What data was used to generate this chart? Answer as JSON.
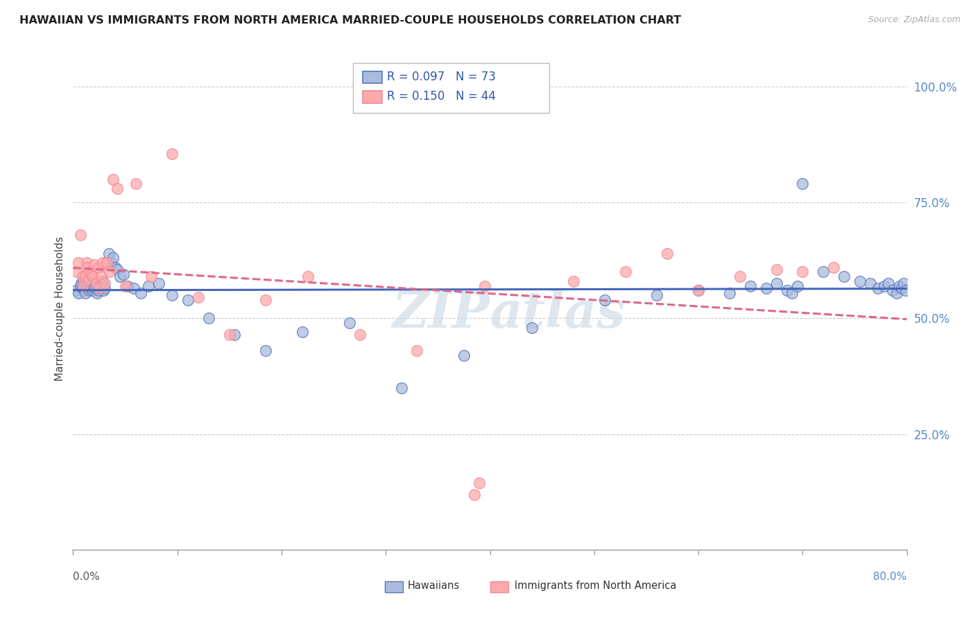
{
  "title": "HAWAIIAN VS IMMIGRANTS FROM NORTH AMERICA MARRIED-COUPLE HOUSEHOLDS CORRELATION CHART",
  "source": "Source: ZipAtlas.com",
  "ylabel": "Married-couple Households",
  "legend1_r": "0.097",
  "legend1_n": "73",
  "legend2_r": "0.150",
  "legend2_n": "44",
  "blue_color": "#AABBDD",
  "pink_color": "#FFAAAA",
  "blue_edge_color": "#5577BB",
  "pink_edge_color": "#EE8899",
  "blue_line_color": "#4466BB",
  "pink_line_color": "#DD6688",
  "watermark_color": "#D0DCE8",
  "blue_x": [
    0.003,
    0.005,
    0.007,
    0.008,
    0.009,
    0.01,
    0.011,
    0.012,
    0.013,
    0.014,
    0.015,
    0.016,
    0.017,
    0.018,
    0.019,
    0.02,
    0.021,
    0.022,
    0.023,
    0.024,
    0.025,
    0.026,
    0.027,
    0.028,
    0.029,
    0.03,
    0.032,
    0.034,
    0.036,
    0.038,
    0.04,
    0.042,
    0.045,
    0.048,
    0.052,
    0.058,
    0.065,
    0.072,
    0.082,
    0.095,
    0.11,
    0.13,
    0.155,
    0.185,
    0.22,
    0.265,
    0.315,
    0.375,
    0.44,
    0.51,
    0.56,
    0.6,
    0.63,
    0.65,
    0.665,
    0.675,
    0.685,
    0.69,
    0.695,
    0.7,
    0.72,
    0.74,
    0.755,
    0.765,
    0.772,
    0.778,
    0.782,
    0.786,
    0.79,
    0.793,
    0.795,
    0.797,
    0.799
  ],
  "blue_y": [
    0.56,
    0.555,
    0.57,
    0.575,
    0.565,
    0.58,
    0.56,
    0.555,
    0.575,
    0.565,
    0.58,
    0.56,
    0.565,
    0.575,
    0.56,
    0.565,
    0.57,
    0.575,
    0.555,
    0.56,
    0.565,
    0.57,
    0.575,
    0.58,
    0.56,
    0.565,
    0.62,
    0.64,
    0.62,
    0.63,
    0.61,
    0.605,
    0.59,
    0.595,
    0.57,
    0.565,
    0.555,
    0.57,
    0.575,
    0.55,
    0.54,
    0.5,
    0.465,
    0.43,
    0.47,
    0.49,
    0.35,
    0.42,
    0.48,
    0.54,
    0.55,
    0.56,
    0.555,
    0.57,
    0.565,
    0.575,
    0.56,
    0.555,
    0.57,
    0.79,
    0.6,
    0.59,
    0.58,
    0.575,
    0.565,
    0.57,
    0.575,
    0.56,
    0.555,
    0.57,
    0.565,
    0.575,
    0.56
  ],
  "pink_x": [
    0.003,
    0.005,
    0.007,
    0.009,
    0.01,
    0.012,
    0.013,
    0.014,
    0.015,
    0.016,
    0.018,
    0.019,
    0.02,
    0.022,
    0.024,
    0.025,
    0.027,
    0.028,
    0.03,
    0.032,
    0.035,
    0.038,
    0.042,
    0.05,
    0.06,
    0.075,
    0.095,
    0.12,
    0.15,
    0.185,
    0.225,
    0.275,
    0.33,
    0.385,
    0.39,
    0.395,
    0.48,
    0.53,
    0.57,
    0.6,
    0.64,
    0.675,
    0.7,
    0.73
  ],
  "pink_y": [
    0.6,
    0.62,
    0.68,
    0.59,
    0.57,
    0.59,
    0.62,
    0.61,
    0.585,
    0.6,
    0.595,
    0.59,
    0.615,
    0.575,
    0.61,
    0.565,
    0.59,
    0.62,
    0.575,
    0.62,
    0.6,
    0.8,
    0.78,
    0.57,
    0.79,
    0.59,
    0.855,
    0.545,
    0.465,
    0.54,
    0.59,
    0.465,
    0.43,
    0.12,
    0.145,
    0.57,
    0.58,
    0.6,
    0.64,
    0.56,
    0.59,
    0.605,
    0.6,
    0.61
  ],
  "xmin": 0.0,
  "xmax": 0.8,
  "ymin": 0.0,
  "ymax": 1.04,
  "yticks": [
    0.25,
    0.5,
    0.75,
    1.0
  ],
  "ytick_labels": [
    "25.0%",
    "50.0%",
    "75.0%",
    "100.0%"
  ]
}
